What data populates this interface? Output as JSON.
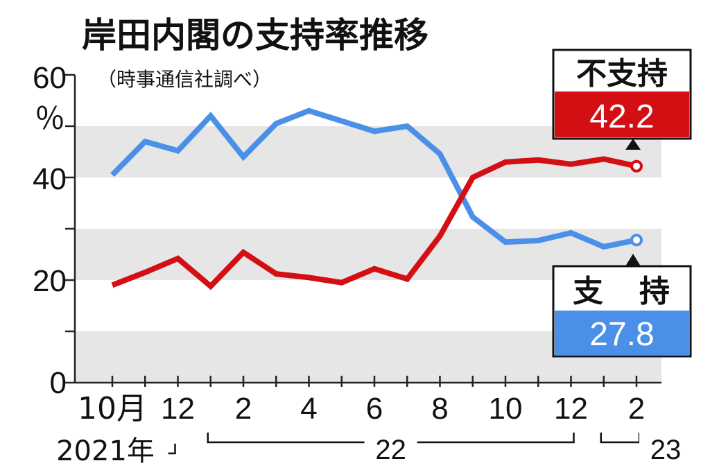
{
  "chart_data": {
    "type": "line",
    "title": "岸田内閣の支持率推移",
    "subtitle": "（時事通信社調べ）",
    "ylabel": "％",
    "ylim": [
      0,
      60
    ],
    "yticks": [
      "0",
      "20",
      "40",
      "60"
    ],
    "x": [
      "2021-10",
      "2021-11",
      "2021-12",
      "2022-01",
      "2022-02",
      "2022-03",
      "2022-04",
      "2022-05",
      "2022-06",
      "2022-07",
      "2022-08",
      "2022-09",
      "2022-10",
      "2022-11",
      "2022-12",
      "2023-01",
      "2023-02"
    ],
    "xtick_labels": [
      {
        "x": "2021-10",
        "label": "10月"
      },
      {
        "x": "2021-12",
        "label": "12"
      },
      {
        "x": "2022-02",
        "label": "2"
      },
      {
        "x": "2022-04",
        "label": "4"
      },
      {
        "x": "2022-06",
        "label": "6"
      },
      {
        "x": "2022-08",
        "label": "8"
      },
      {
        "x": "2022-10",
        "label": "10"
      },
      {
        "x": "2022-12",
        "label": "12"
      },
      {
        "x": "2023-02",
        "label": "2"
      }
    ],
    "year_labels": [
      {
        "label": "2021年",
        "from": "2021-10",
        "to": "2021-12"
      },
      {
        "label": "22",
        "from": "2022-01",
        "to": "2022-12"
      },
      {
        "label": "23",
        "from": "2023-01",
        "to": "2023-02"
      }
    ],
    "series": [
      {
        "name": "支持",
        "color": "#4a90e8",
        "values": [
          40.5,
          47.0,
          45.2,
          52.0,
          44.0,
          50.5,
          53.0,
          51.0,
          49.0,
          50.0,
          44.6,
          32.3,
          27.4,
          27.7,
          29.2,
          26.5,
          27.8
        ],
        "latest_label": "27.8"
      },
      {
        "name": "不支持",
        "color": "#d40f14",
        "values": [
          19.0,
          21.5,
          24.2,
          18.8,
          25.4,
          21.2,
          20.5,
          19.5,
          22.2,
          20.2,
          28.6,
          40.0,
          43.0,
          43.4,
          42.6,
          43.6,
          42.2
        ],
        "latest_label": "42.2"
      }
    ],
    "callout_labels": {
      "disapprove_head": "不支持",
      "approve_head_1": "支",
      "approve_head_2": "持"
    },
    "grid_bands": "alternating gray bands every 10 points",
    "background_band_color": "#e6e6e6"
  }
}
